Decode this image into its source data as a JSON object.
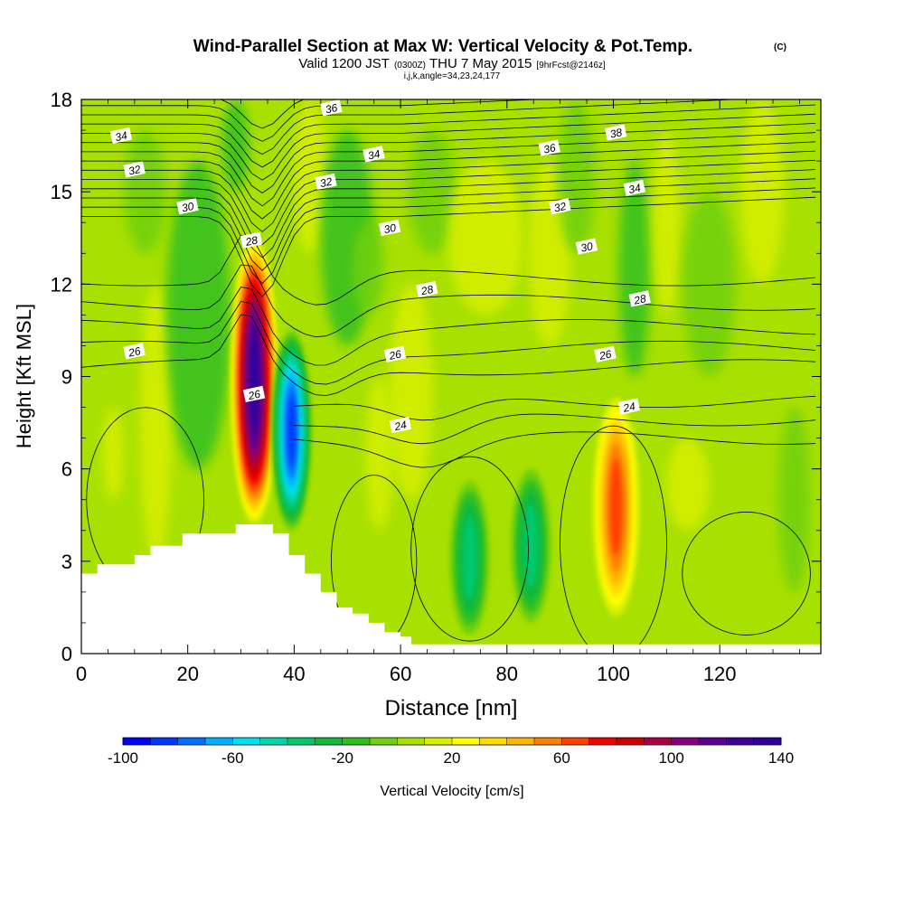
{
  "chart_data": {
    "type": "heatmap",
    "title": "Wind-Parallel Section at Max W: Vertical Velocity & Pot.Temp.",
    "title_mark": "(C)",
    "subtitle_valid": "Valid 1200 JST",
    "subtitle_utc": "(0300Z)",
    "subtitle_date": "THU 7 May 2015",
    "subtitle_fcst": "[9hrFcst@2146z]",
    "subtitle_line2": "i,j,k,angle=34,23,24,177",
    "xlabel": "Distance [nm]",
    "ylabel": "Height [Kft MSL]",
    "xlim": [
      0,
      139
    ],
    "ylim": [
      0,
      18
    ],
    "x_ticks": [
      0,
      20,
      40,
      60,
      80,
      100,
      120
    ],
    "y_ticks": [
      0,
      3,
      6,
      9,
      12,
      15,
      18
    ],
    "colorbar": {
      "label": "Vertical Velocity [cm/s]",
      "min": -100,
      "max": 140,
      "step": 10,
      "tick_labels": [
        "-100",
        "-60",
        "-20",
        "20",
        "60",
        "100",
        "140"
      ],
      "colors": [
        "#0000ff",
        "#0036ff",
        "#006eff",
        "#00b0ff",
        "#00e0f0",
        "#00d4a8",
        "#00c86c",
        "#10b83c",
        "#30c020",
        "#70d010",
        "#a8e000",
        "#d8f000",
        "#ffff00",
        "#ffdc00",
        "#ffb400",
        "#ff8000",
        "#ff4000",
        "#f00000",
        "#cc0000",
        "#a80044",
        "#84007c",
        "#5a0090",
        "#400098",
        "#30009c"
      ]
    },
    "vertical_velocity_features": [
      {
        "kind": "updraft",
        "x_nm": 32.5,
        "z_kft_bottom": 4.2,
        "z_kft_top": 13.5,
        "peak_cms": 135
      },
      {
        "kind": "downdraft",
        "x_nm": 39.5,
        "z_kft_bottom": 4.0,
        "z_kft_top": 10.5,
        "peak_cms": -95
      },
      {
        "kind": "updraft",
        "x_nm": 100.5,
        "z_kft_bottom": 1.2,
        "z_kft_top": 8.3,
        "peak_cms": 60
      },
      {
        "kind": "downdraft",
        "x_nm": 73,
        "z_kft_bottom": 0.6,
        "z_kft_top": 5.6,
        "peak_cms": -40
      },
      {
        "kind": "downdraft",
        "x_nm": 84.5,
        "z_kft_bottom": 1.0,
        "z_kft_top": 6.0,
        "peak_cms": -40
      }
    ],
    "theta_contour_labels": [
      {
        "label": "34",
        "x_nm": 7.5,
        "z_kft": 16.8
      },
      {
        "label": "32",
        "x_nm": 10,
        "z_kft": 15.7
      },
      {
        "label": "30",
        "x_nm": 20,
        "z_kft": 14.5
      },
      {
        "label": "28",
        "x_nm": 32,
        "z_kft": 13.4
      },
      {
        "label": "26",
        "x_nm": 32.5,
        "z_kft": 8.4
      },
      {
        "label": "26",
        "x_nm": 10,
        "z_kft": 9.8
      },
      {
        "label": "36",
        "x_nm": 47,
        "z_kft": 17.7
      },
      {
        "label": "34",
        "x_nm": 55,
        "z_kft": 16.2
      },
      {
        "label": "32",
        "x_nm": 46,
        "z_kft": 15.3
      },
      {
        "label": "30",
        "x_nm": 58,
        "z_kft": 13.8
      },
      {
        "label": "28",
        "x_nm": 65,
        "z_kft": 11.8
      },
      {
        "label": "26",
        "x_nm": 59,
        "z_kft": 9.7
      },
      {
        "label": "24",
        "x_nm": 60,
        "z_kft": 7.4
      },
      {
        "label": "36",
        "x_nm": 88,
        "z_kft": 16.4
      },
      {
        "label": "38",
        "x_nm": 100.5,
        "z_kft": 16.9
      },
      {
        "label": "34",
        "x_nm": 104,
        "z_kft": 15.1
      },
      {
        "label": "32",
        "x_nm": 90,
        "z_kft": 14.5
      },
      {
        "label": "30",
        "x_nm": 95,
        "z_kft": 13.2
      },
      {
        "label": "28",
        "x_nm": 105,
        "z_kft": 11.5
      },
      {
        "label": "26",
        "x_nm": 98.5,
        "z_kft": 9.7
      },
      {
        "label": "24",
        "x_nm": 103,
        "z_kft": 8.0
      }
    ],
    "terrain_profile": [
      [
        0,
        2.6
      ],
      [
        3,
        2.6
      ],
      [
        3,
        2.9
      ],
      [
        10,
        2.9
      ],
      [
        10,
        3.2
      ],
      [
        13,
        3.2
      ],
      [
        13,
        3.5
      ],
      [
        19,
        3.5
      ],
      [
        19,
        3.9
      ],
      [
        29,
        3.9
      ],
      [
        29,
        4.2
      ],
      [
        36,
        4.2
      ],
      [
        36,
        3.9
      ],
      [
        39,
        3.9
      ],
      [
        39,
        3.2
      ],
      [
        42,
        3.2
      ],
      [
        42,
        2.6
      ],
      [
        45,
        2.6
      ],
      [
        45,
        2.0
      ],
      [
        48,
        2.0
      ],
      [
        48,
        1.5
      ],
      [
        51,
        1.5
      ],
      [
        51,
        1.3
      ],
      [
        54,
        1.3
      ],
      [
        54,
        1.0
      ],
      [
        57,
        1.0
      ],
      [
        57,
        0.7
      ],
      [
        60,
        0.7
      ],
      [
        60,
        0.55
      ],
      [
        62,
        0.55
      ],
      [
        62,
        0.3
      ],
      [
        139,
        0.3
      ]
    ]
  }
}
